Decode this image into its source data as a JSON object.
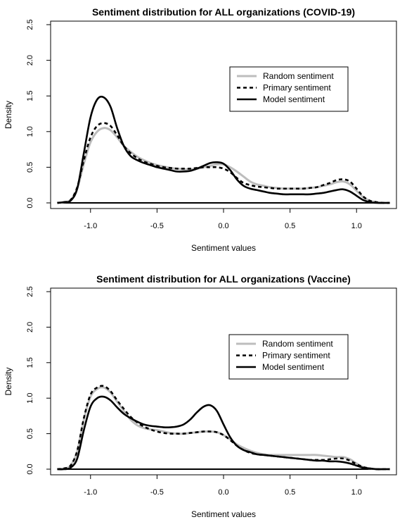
{
  "chart_data": [
    {
      "type": "line",
      "title": "Sentiment distribution for ALL organizations (COVID-19)",
      "xlabel": "Sentiment values",
      "ylabel": "Density",
      "xlim": [
        -1.3,
        1.3
      ],
      "ylim": [
        0,
        2.5
      ],
      "xticks": [
        "-1.0",
        "-0.5",
        "0.0",
        "0.5",
        "1.0"
      ],
      "yticks": [
        "0.0",
        "0.5",
        "1.0",
        "1.5",
        "2.0",
        "2.5"
      ],
      "legend_position": "top-right",
      "grid": false,
      "series": [
        {
          "name": "Random sentiment",
          "color": "#bdbdbd",
          "dash": "solid",
          "x": [
            -1.25,
            -1.2,
            -1.15,
            -1.1,
            -1.05,
            -1.0,
            -0.95,
            -0.9,
            -0.85,
            -0.8,
            -0.75,
            -0.7,
            -0.65,
            -0.6,
            -0.55,
            -0.5,
            -0.45,
            -0.4,
            -0.35,
            -0.3,
            -0.25,
            -0.2,
            -0.15,
            -0.1,
            -0.05,
            0.0,
            0.05,
            0.1,
            0.15,
            0.2,
            0.25,
            0.3,
            0.35,
            0.4,
            0.45,
            0.5,
            0.55,
            0.6,
            0.65,
            0.7,
            0.75,
            0.8,
            0.85,
            0.9,
            0.95,
            1.0,
            1.05,
            1.1,
            1.15,
            1.2,
            1.25
          ],
          "values": [
            0.0,
            0.01,
            0.04,
            0.2,
            0.55,
            0.85,
            1.0,
            1.05,
            1.02,
            0.92,
            0.8,
            0.72,
            0.65,
            0.6,
            0.56,
            0.53,
            0.51,
            0.49,
            0.48,
            0.47,
            0.47,
            0.48,
            0.5,
            0.52,
            0.54,
            0.54,
            0.5,
            0.44,
            0.37,
            0.3,
            0.26,
            0.24,
            0.22,
            0.21,
            0.2,
            0.2,
            0.2,
            0.2,
            0.21,
            0.22,
            0.24,
            0.26,
            0.29,
            0.3,
            0.26,
            0.17,
            0.08,
            0.03,
            0.01,
            0.0,
            0.0
          ]
        },
        {
          "name": "Primary sentiment",
          "color": "#000000",
          "dash": "dashed",
          "x": [
            -1.25,
            -1.2,
            -1.15,
            -1.1,
            -1.05,
            -1.0,
            -0.95,
            -0.9,
            -0.85,
            -0.8,
            -0.75,
            -0.7,
            -0.65,
            -0.6,
            -0.55,
            -0.5,
            -0.45,
            -0.4,
            -0.35,
            -0.3,
            -0.25,
            -0.2,
            -0.15,
            -0.1,
            -0.05,
            0.0,
            0.05,
            0.1,
            0.15,
            0.2,
            0.25,
            0.3,
            0.35,
            0.4,
            0.45,
            0.5,
            0.55,
            0.6,
            0.65,
            0.7,
            0.75,
            0.8,
            0.85,
            0.9,
            0.95,
            1.0,
            1.05,
            1.1,
            1.15,
            1.2,
            1.25
          ],
          "values": [
            0.0,
            0.01,
            0.04,
            0.22,
            0.6,
            0.92,
            1.08,
            1.12,
            1.08,
            0.95,
            0.8,
            0.7,
            0.63,
            0.58,
            0.55,
            0.52,
            0.5,
            0.49,
            0.48,
            0.48,
            0.48,
            0.49,
            0.5,
            0.5,
            0.5,
            0.48,
            0.43,
            0.35,
            0.28,
            0.25,
            0.23,
            0.22,
            0.21,
            0.2,
            0.2,
            0.2,
            0.2,
            0.2,
            0.21,
            0.22,
            0.25,
            0.28,
            0.32,
            0.33,
            0.3,
            0.2,
            0.09,
            0.03,
            0.01,
            0.0,
            0.0
          ]
        },
        {
          "name": "Model sentiment",
          "color": "#000000",
          "dash": "solid",
          "x": [
            -1.25,
            -1.2,
            -1.15,
            -1.1,
            -1.05,
            -1.0,
            -0.95,
            -0.9,
            -0.85,
            -0.8,
            -0.75,
            -0.7,
            -0.65,
            -0.6,
            -0.55,
            -0.5,
            -0.45,
            -0.4,
            -0.35,
            -0.3,
            -0.25,
            -0.2,
            -0.15,
            -0.1,
            -0.05,
            0.0,
            0.05,
            0.1,
            0.15,
            0.2,
            0.25,
            0.3,
            0.35,
            0.4,
            0.45,
            0.5,
            0.55,
            0.6,
            0.65,
            0.7,
            0.75,
            0.8,
            0.85,
            0.9,
            0.95,
            1.0,
            1.05,
            1.1,
            1.15,
            1.2,
            1.25
          ],
          "values": [
            0.0,
            0.01,
            0.03,
            0.2,
            0.7,
            1.2,
            1.45,
            1.48,
            1.35,
            1.05,
            0.8,
            0.66,
            0.6,
            0.56,
            0.53,
            0.5,
            0.48,
            0.46,
            0.44,
            0.44,
            0.45,
            0.48,
            0.52,
            0.56,
            0.57,
            0.55,
            0.46,
            0.33,
            0.24,
            0.2,
            0.18,
            0.16,
            0.14,
            0.13,
            0.12,
            0.12,
            0.12,
            0.12,
            0.12,
            0.13,
            0.14,
            0.16,
            0.18,
            0.19,
            0.16,
            0.1,
            0.04,
            0.01,
            0.0,
            0.0,
            0.0
          ]
        }
      ]
    },
    {
      "type": "line",
      "title": "Sentiment distribution for ALL organizations (Vaccine)",
      "xlabel": "Sentiment values",
      "ylabel": "Density",
      "xlim": [
        -1.3,
        1.3
      ],
      "ylim": [
        0,
        2.5
      ],
      "xticks": [
        "-1.0",
        "-0.5",
        "0.0",
        "0.5",
        "1.0"
      ],
      "yticks": [
        "0.0",
        "0.5",
        "1.0",
        "1.5",
        "2.0",
        "2.5"
      ],
      "legend_position": "top-right",
      "grid": false,
      "series": [
        {
          "name": "Random sentiment",
          "color": "#bdbdbd",
          "dash": "solid",
          "x": [
            -1.25,
            -1.2,
            -1.15,
            -1.1,
            -1.05,
            -1.0,
            -0.95,
            -0.9,
            -0.85,
            -0.8,
            -0.75,
            -0.7,
            -0.65,
            -0.6,
            -0.55,
            -0.5,
            -0.45,
            -0.4,
            -0.35,
            -0.3,
            -0.25,
            -0.2,
            -0.15,
            -0.1,
            -0.05,
            0.0,
            0.05,
            0.1,
            0.15,
            0.2,
            0.25,
            0.3,
            0.35,
            0.4,
            0.45,
            0.5,
            0.55,
            0.6,
            0.65,
            0.7,
            0.75,
            0.8,
            0.85,
            0.9,
            0.95,
            1.0,
            1.05,
            1.1,
            1.15,
            1.2,
            1.25
          ],
          "values": [
            0.0,
            0.01,
            0.05,
            0.25,
            0.7,
            1.02,
            1.13,
            1.15,
            1.08,
            0.95,
            0.82,
            0.7,
            0.62,
            0.58,
            0.56,
            0.55,
            0.53,
            0.51,
            0.5,
            0.5,
            0.51,
            0.52,
            0.53,
            0.53,
            0.52,
            0.48,
            0.42,
            0.35,
            0.3,
            0.26,
            0.23,
            0.21,
            0.2,
            0.2,
            0.2,
            0.2,
            0.2,
            0.2,
            0.2,
            0.2,
            0.19,
            0.18,
            0.17,
            0.17,
            0.14,
            0.08,
            0.03,
            0.01,
            0.0,
            0.0,
            0.0
          ]
        },
        {
          "name": "Primary sentiment",
          "color": "#000000",
          "dash": "dashed",
          "x": [
            -1.25,
            -1.2,
            -1.15,
            -1.1,
            -1.05,
            -1.0,
            -0.95,
            -0.9,
            -0.85,
            -0.8,
            -0.75,
            -0.7,
            -0.65,
            -0.6,
            -0.55,
            -0.5,
            -0.45,
            -0.4,
            -0.35,
            -0.3,
            -0.25,
            -0.2,
            -0.15,
            -0.1,
            -0.05,
            0.0,
            0.05,
            0.1,
            0.15,
            0.2,
            0.25,
            0.3,
            0.35,
            0.4,
            0.45,
            0.5,
            0.55,
            0.6,
            0.65,
            0.7,
            0.75,
            0.8,
            0.85,
            0.9,
            0.95,
            1.0,
            1.05,
            1.1,
            1.15,
            1.2,
            1.25
          ],
          "values": [
            0.0,
            0.01,
            0.05,
            0.26,
            0.72,
            1.05,
            1.15,
            1.17,
            1.1,
            0.97,
            0.85,
            0.74,
            0.66,
            0.6,
            0.56,
            0.53,
            0.51,
            0.5,
            0.5,
            0.5,
            0.51,
            0.52,
            0.53,
            0.53,
            0.52,
            0.48,
            0.41,
            0.33,
            0.27,
            0.23,
            0.21,
            0.2,
            0.19,
            0.18,
            0.17,
            0.16,
            0.15,
            0.14,
            0.13,
            0.13,
            0.13,
            0.14,
            0.15,
            0.15,
            0.12,
            0.07,
            0.03,
            0.01,
            0.0,
            0.0,
            0.0
          ]
        },
        {
          "name": "Model sentiment",
          "color": "#000000",
          "dash": "solid",
          "x": [
            -1.25,
            -1.2,
            -1.15,
            -1.1,
            -1.05,
            -1.0,
            -0.95,
            -0.9,
            -0.85,
            -0.8,
            -0.75,
            -0.7,
            -0.65,
            -0.6,
            -0.55,
            -0.5,
            -0.45,
            -0.4,
            -0.35,
            -0.3,
            -0.25,
            -0.2,
            -0.15,
            -0.1,
            -0.05,
            0.0,
            0.05,
            0.1,
            0.15,
            0.2,
            0.25,
            0.3,
            0.35,
            0.4,
            0.45,
            0.5,
            0.55,
            0.6,
            0.65,
            0.7,
            0.75,
            0.8,
            0.85,
            0.9,
            0.95,
            1.0,
            1.05,
            1.1,
            1.15,
            1.2,
            1.25
          ],
          "values": [
            0.0,
            0.0,
            0.02,
            0.15,
            0.55,
            0.88,
            1.0,
            1.02,
            0.97,
            0.87,
            0.78,
            0.72,
            0.67,
            0.63,
            0.61,
            0.6,
            0.59,
            0.59,
            0.6,
            0.63,
            0.7,
            0.8,
            0.88,
            0.9,
            0.82,
            0.63,
            0.45,
            0.33,
            0.27,
            0.24,
            0.21,
            0.2,
            0.19,
            0.18,
            0.17,
            0.16,
            0.15,
            0.14,
            0.13,
            0.12,
            0.12,
            0.11,
            0.11,
            0.1,
            0.08,
            0.05,
            0.02,
            0.01,
            0.0,
            0.0,
            0.0
          ]
        }
      ]
    }
  ]
}
